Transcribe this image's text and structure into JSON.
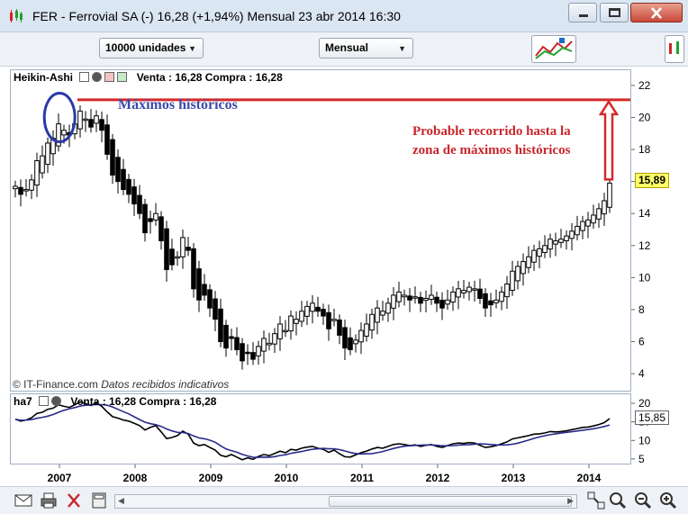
{
  "window": {
    "title": "FER - Ferrovial SA (-)   16,28 (+1,94%)   Mensual  23 abr 2014 16:30"
  },
  "toolbar": {
    "units_value": "10000 unidades",
    "period_value": "Mensual"
  },
  "main_pane": {
    "legend_name": "Heikin-Ashi",
    "legend_quote": "Venta : 16,28 Compra : 16,28",
    "last_price_badge": "15,89",
    "copyright": "© IT-Finance.com",
    "copyright_note": "Datos recibidos indicativos",
    "annotation_max": "Máximos históricos",
    "annotation_target_line1": "Probable recorrido hasta la",
    "annotation_target_line2": "zona de máximos históricos"
  },
  "lower_pane": {
    "legend_name": "ha7",
    "legend_quote": "Venta : 16,28 Compra : 16,28",
    "badge_value": "15,85"
  },
  "chart_data": [
    {
      "type": "candlestick",
      "style": "Heikin-Ashi",
      "interval": "monthly",
      "x_tick_labels": [
        "2007",
        "2008",
        "2009",
        "2010",
        "2011",
        "2012",
        "2013",
        "2014"
      ],
      "y_tick_labels": [
        "4",
        "6",
        "8",
        "10",
        "12",
        "14",
        "16",
        "18",
        "20",
        "22"
      ],
      "ylim": [
        3.5,
        22.5
      ],
      "grid": false,
      "horizontal_line": {
        "value": 21.1,
        "color": "#d42a2a"
      },
      "highlight_ellipse_at": {
        "date": "2007.4",
        "value": 20.0
      },
      "arrow": {
        "from": 15.9,
        "to": 21.1,
        "color": "#d42a2a"
      },
      "closes": [
        15.7,
        15.2,
        15.5,
        16.1,
        17.3,
        17.6,
        18.4,
        18.7,
        19.6,
        19.2,
        18.9,
        19.6,
        20.4,
        19.9,
        19.4,
        20.1,
        19.2,
        17.7,
        16.4,
        16.0,
        15.5,
        15.2,
        14.6,
        14.0,
        12.8,
        13.5,
        14.0,
        12.3,
        10.5,
        10.8,
        11.3,
        12.5,
        11.7,
        9.3,
        8.6,
        8.9,
        8.1,
        7.4,
        6.0,
        5.6,
        6.2,
        5.5,
        4.8,
        5.3,
        4.9,
        5.7,
        6.2,
        5.9,
        6.5,
        7.1,
        6.7,
        7.6,
        7.4,
        7.9,
        8.2,
        8.4,
        7.9,
        7.6,
        6.8,
        7.4,
        6.4,
        5.6,
        5.5,
        6.1,
        6.7,
        7.1,
        7.7,
        8.1,
        7.9,
        8.4,
        8.9,
        9.1,
        8.9,
        8.6,
        8.8,
        8.4,
        8.7,
        8.9,
        8.4,
        8.1,
        8.6,
        9.1,
        9.3,
        9.2,
        9.4,
        9.3,
        8.7,
        8.1,
        8.3,
        8.6,
        9.1,
        9.6,
        10.4,
        10.7,
        11.0,
        11.3,
        11.7,
        11.8,
        12.0,
        12.4,
        12.3,
        12.4,
        12.6,
        12.9,
        13.2,
        13.5,
        13.6,
        13.9,
        14.3,
        14.8,
        15.9
      ],
      "price_badge": 15.89
    },
    {
      "type": "line",
      "name": "ha7",
      "y_tick_labels": [
        "5",
        "10",
        "15",
        "20"
      ],
      "ylim": [
        4.0,
        20.5
      ],
      "series": [
        {
          "color": "#000000",
          "values": [
            15.7,
            15.2,
            15.5,
            16.1,
            17.3,
            17.6,
            18.4,
            18.7,
            19.6,
            19.2,
            18.9,
            19.6,
            20.4,
            19.9,
            19.4,
            20.1,
            19.2,
            17.7,
            16.4,
            16.0,
            15.5,
            15.2,
            14.6,
            14.0,
            12.8,
            13.5,
            14.0,
            12.3,
            10.5,
            10.8,
            11.3,
            12.5,
            11.7,
            9.3,
            8.6,
            8.9,
            8.1,
            7.4,
            6.0,
            5.6,
            6.2,
            5.5,
            4.8,
            5.3,
            4.9,
            5.7,
            6.2,
            5.9,
            6.5,
            7.1,
            6.7,
            7.6,
            7.4,
            7.9,
            8.2,
            8.4,
            7.9,
            7.6,
            6.8,
            7.4,
            6.4,
            5.6,
            5.5,
            6.1,
            6.7,
            7.1,
            7.7,
            8.1,
            7.9,
            8.4,
            8.9,
            9.1,
            8.9,
            8.6,
            8.8,
            8.4,
            8.7,
            8.9,
            8.4,
            8.1,
            8.6,
            9.1,
            9.3,
            9.2,
            9.4,
            9.3,
            8.7,
            8.1,
            8.3,
            8.6,
            9.1,
            9.6,
            10.4,
            10.7,
            11.0,
            11.3,
            11.7,
            11.8,
            12.0,
            12.4,
            12.3,
            12.4,
            12.6,
            12.9,
            13.2,
            13.5,
            13.6,
            13.9,
            14.3,
            14.8,
            15.9
          ]
        },
        {
          "color": "#2a2a8a",
          "smoothing": 7
        }
      ],
      "value_badge": 15.85
    }
  ]
}
